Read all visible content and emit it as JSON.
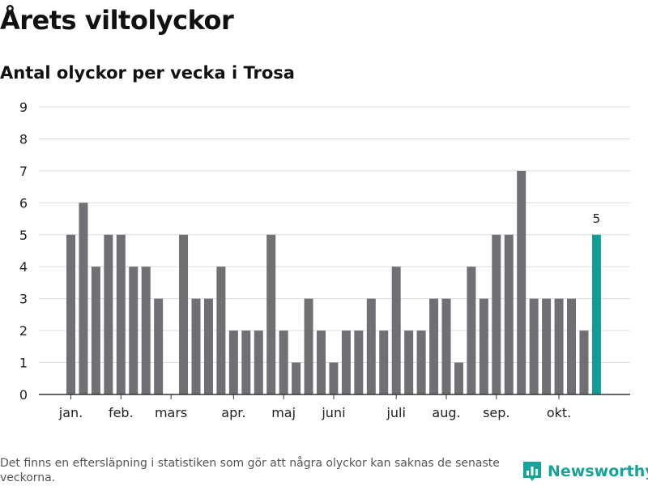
{
  "header": {
    "title": "Årets viltolyckor",
    "subtitle": "Antal olyckor per vecka i Trosa"
  },
  "footer": {
    "note": "Det finns en eftersläpning i statistiken som gör att några olyckor kan saknas de senaste veckorna.",
    "brand": "Newsworthy",
    "brand_icon": "bar-chart-logo-icon"
  },
  "colors": {
    "bar": "#706f74",
    "highlight": "#0d9e96",
    "grid": "#dddddd",
    "axis": "#333333",
    "brand": "#17a398"
  },
  "chart_data": {
    "type": "bar",
    "title": "Årets viltolyckor",
    "subtitle": "Antal olyckor per vecka i Trosa",
    "xlabel": "",
    "ylabel": "",
    "ylim": [
      0,
      9
    ],
    "yticks": [
      0,
      1,
      2,
      3,
      4,
      5,
      6,
      7,
      8,
      9
    ],
    "grid": true,
    "weeks": [
      1,
      2,
      3,
      4,
      5,
      6,
      7,
      8,
      9,
      10,
      11,
      12,
      13,
      14,
      15,
      16,
      17,
      18,
      19,
      20,
      21,
      22,
      23,
      24,
      25,
      26,
      27,
      28,
      29,
      30,
      31,
      32,
      33,
      34,
      35,
      36,
      37,
      38,
      39,
      40,
      41,
      42,
      43
    ],
    "values": [
      5,
      6,
      4,
      5,
      5,
      4,
      4,
      3,
      0,
      5,
      3,
      3,
      4,
      2,
      2,
      2,
      5,
      2,
      1,
      3,
      2,
      1,
      2,
      2,
      3,
      2,
      4,
      2,
      2,
      3,
      3,
      1,
      4,
      3,
      5,
      5,
      7,
      3,
      3,
      3,
      3,
      2,
      5
    ],
    "month_ticks": [
      {
        "label": "jan.",
        "week": 1
      },
      {
        "label": "feb.",
        "week": 5
      },
      {
        "label": "mars",
        "week": 9
      },
      {
        "label": "apr.",
        "week": 14
      },
      {
        "label": "maj",
        "week": 18
      },
      {
        "label": "juni",
        "week": 22
      },
      {
        "label": "juli",
        "week": 27
      },
      {
        "label": "aug.",
        "week": 31
      },
      {
        "label": "sep.",
        "week": 35
      },
      {
        "label": "okt.",
        "week": 40
      }
    ],
    "highlight_index": 42,
    "highlight_label": "5"
  }
}
